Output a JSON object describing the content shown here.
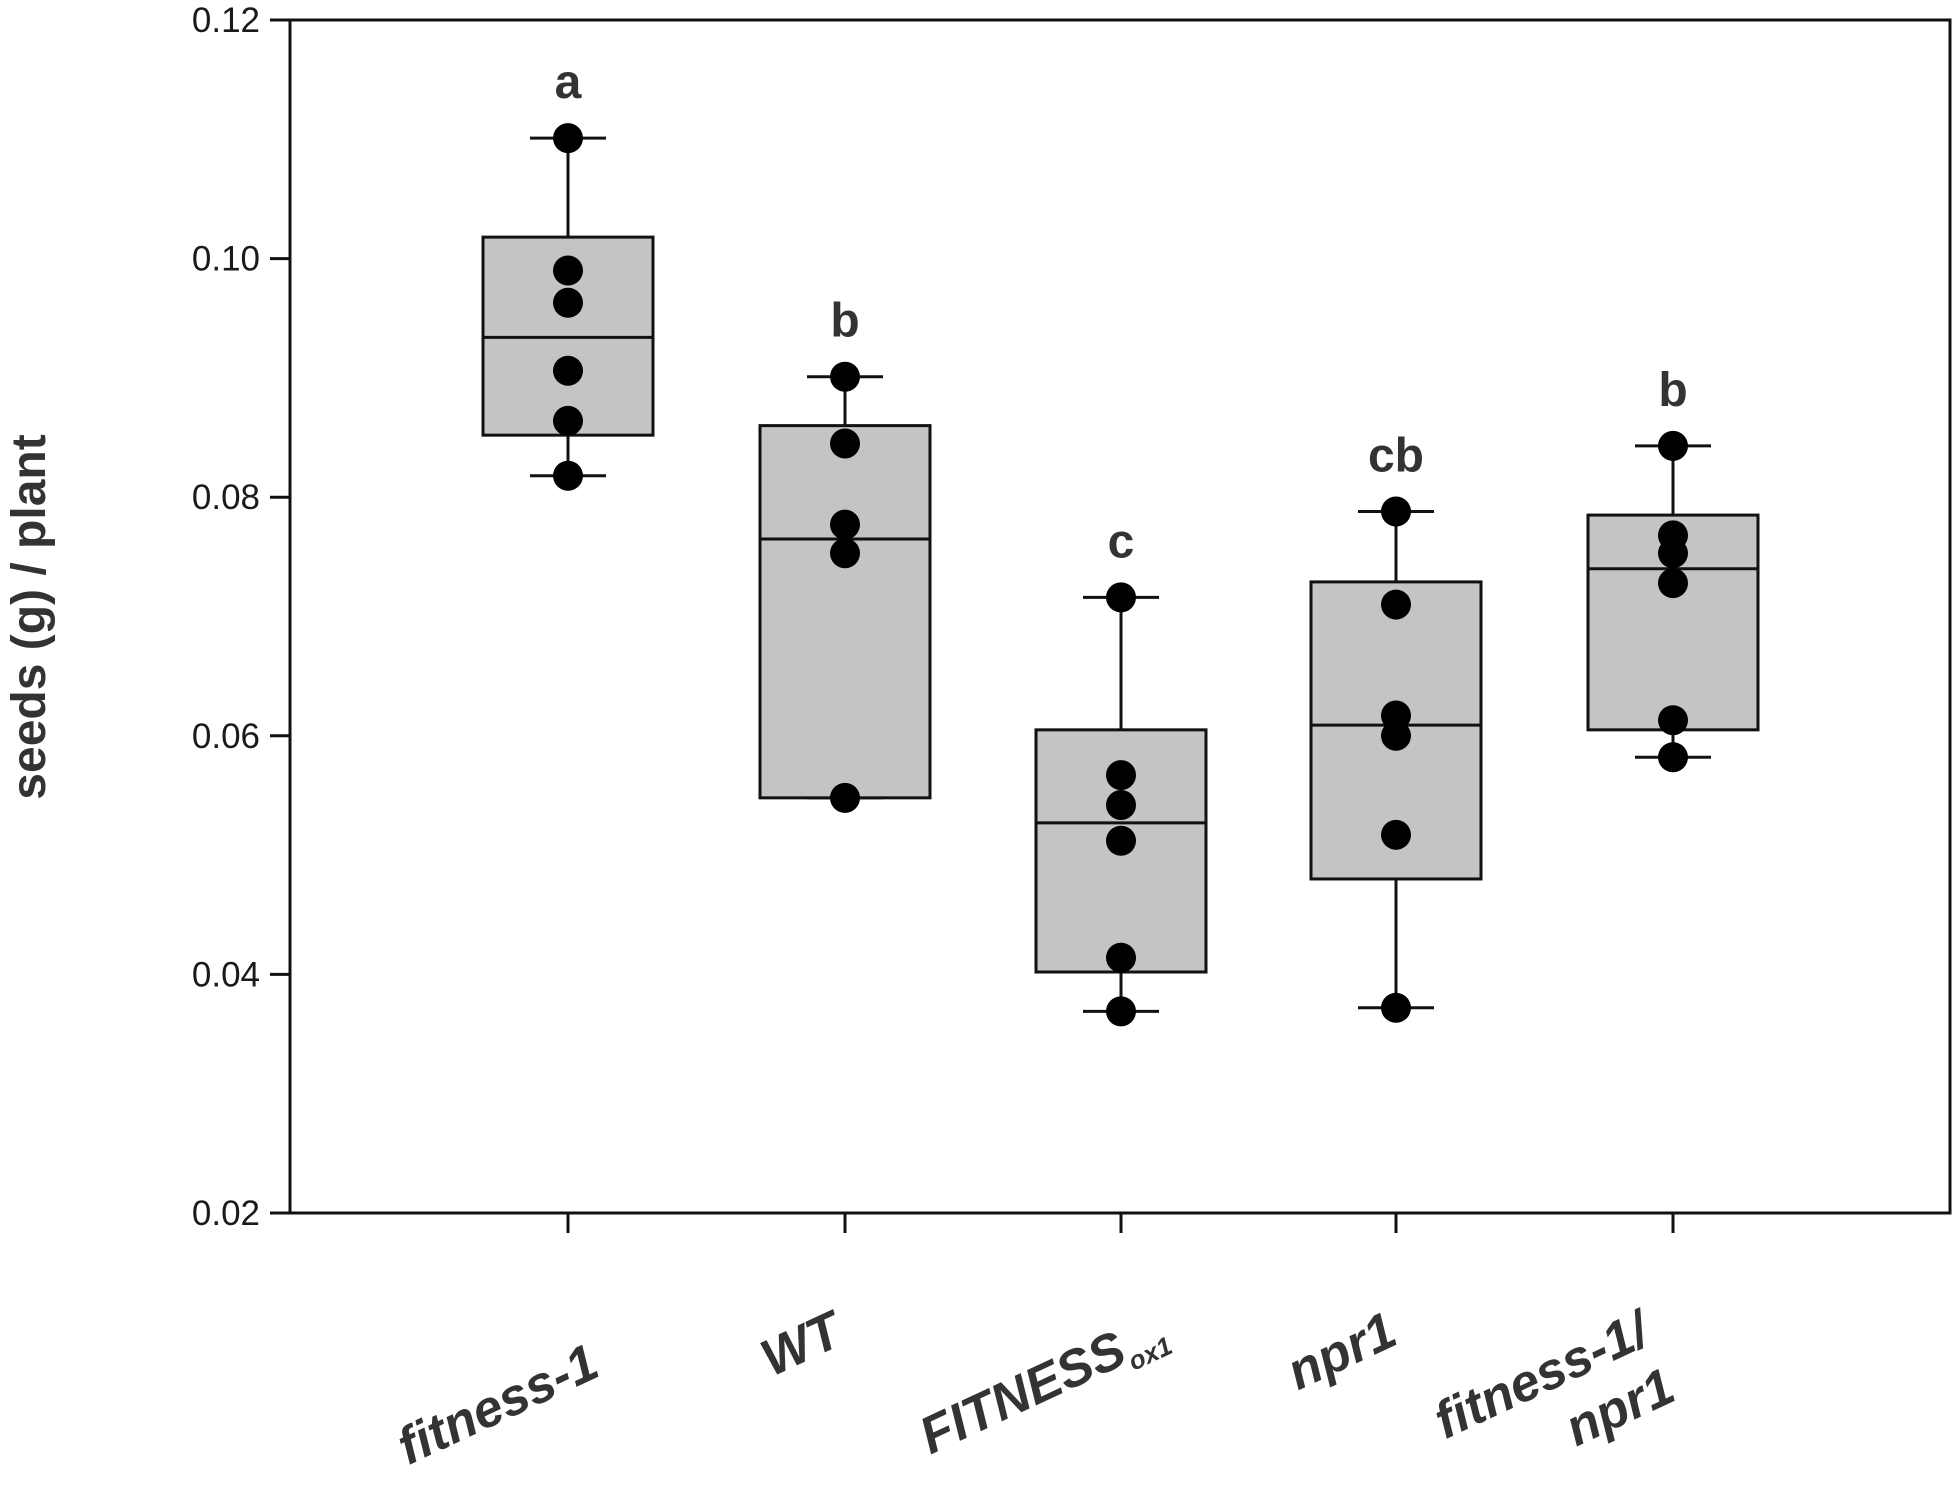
{
  "chart_data": {
    "type": "box",
    "title": "",
    "xlabel": "",
    "ylabel": "seeds (g) / plant",
    "ylim": [
      0.02,
      0.12
    ],
    "yticks": [
      "0.02",
      "0.04",
      "0.06",
      "0.08",
      "0.10",
      "0.12"
    ],
    "grid": false,
    "legend": "none",
    "categories": [
      {
        "label_lines": [
          "fitness-1"
        ],
        "subscript": ""
      },
      {
        "label_lines": [
          "WT"
        ],
        "subscript": ""
      },
      {
        "label_lines": [
          "FITNESS"
        ],
        "subscript": "ox1"
      },
      {
        "label_lines": [
          "npr1"
        ],
        "subscript": ""
      },
      {
        "label_lines": [
          "fitness-1/",
          "npr1"
        ],
        "subscript": ""
      }
    ],
    "boxes": [
      {
        "whisker_low": 0.0818,
        "q1": 0.0852,
        "median": 0.0934,
        "q3": 0.1018,
        "whisker_high": 0.1101,
        "significance": "a",
        "points": [
          0.1101,
          0.099,
          0.0963,
          0.0906,
          0.0864,
          0.0818
        ]
      },
      {
        "whisker_low": 0.0548,
        "q1": 0.0548,
        "median": 0.0765,
        "q3": 0.086,
        "whisker_high": 0.0901,
        "significance": "b",
        "points": [
          0.0901,
          0.0845,
          0.0777,
          0.0753,
          0.0548
        ]
      },
      {
        "whisker_low": 0.0369,
        "q1": 0.0402,
        "median": 0.0527,
        "q3": 0.0605,
        "whisker_high": 0.0716,
        "significance": "c",
        "points": [
          0.0716,
          0.0567,
          0.0542,
          0.0512,
          0.0414,
          0.0369
        ]
      },
      {
        "whisker_low": 0.0372,
        "q1": 0.048,
        "median": 0.0609,
        "q3": 0.0729,
        "whisker_high": 0.0788,
        "significance": "cb",
        "points": [
          0.0788,
          0.071,
          0.0617,
          0.06,
          0.0517,
          0.0372
        ]
      },
      {
        "whisker_low": 0.0582,
        "q1": 0.0605,
        "median": 0.074,
        "q3": 0.0785,
        "whisker_high": 0.0843,
        "significance": "b",
        "points": [
          0.0843,
          0.0768,
          0.0753,
          0.0728,
          0.0613,
          0.0582
        ]
      }
    ],
    "colors": {
      "box_fill": "#c4c4c4",
      "stroke": "#111111",
      "point": "#000000",
      "text": "#333333"
    }
  }
}
